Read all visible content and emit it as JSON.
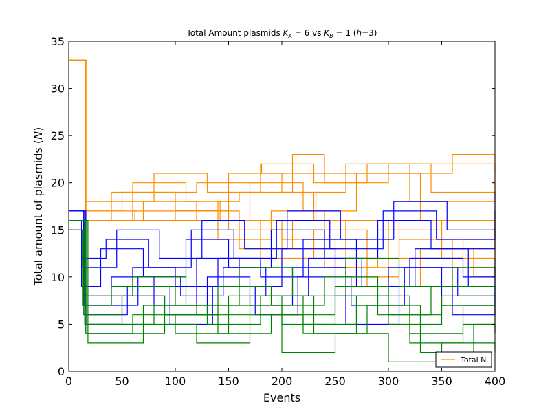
{
  "chart_data": {
    "type": "line",
    "title_text": "Total Amount plasmids",
    "title_ka": "K",
    "title_ka_sub": "A",
    "title_eq1": " = 6 vs ",
    "title_kb": "K",
    "title_kb_sub": "B",
    "title_eq2": " = 1 (",
    "title_h": "h",
    "title_end": "=3)",
    "xlabel": "Events",
    "ylabel_text": "Total amount of plasmids (",
    "ylabel_var": "N",
    "ylabel_end": ")",
    "xlim": [
      0,
      400
    ],
    "ylim": [
      0,
      35
    ],
    "xticks": [
      "0",
      "50",
      "100",
      "150",
      "200",
      "250",
      "300",
      "350",
      "400"
    ],
    "yticks": [
      "0",
      "5",
      "10",
      "15",
      "20",
      "25",
      "30",
      "35"
    ],
    "legend_placement": "lower-right",
    "legend": [
      {
        "label": "Total N",
        "color": "#ff8c00"
      }
    ],
    "colors": {
      "orange": "#ff8c00",
      "blue": "#0000ff",
      "green": "#008000"
    },
    "series": [
      {
        "group": "orange",
        "points": [
          [
            0,
            33
          ],
          [
            16,
            16
          ],
          [
            60,
            17
          ],
          [
            62,
            16
          ],
          [
            140,
            18
          ],
          [
            142,
            16
          ],
          [
            230,
            19
          ],
          [
            232,
            16
          ],
          [
            400,
            16
          ]
        ]
      },
      {
        "group": "orange",
        "points": [
          [
            0,
            33
          ],
          [
            16,
            16
          ],
          [
            40,
            19
          ],
          [
            60,
            19
          ],
          [
            120,
            20
          ],
          [
            180,
            22
          ],
          [
            181,
            21
          ],
          [
            300,
            22
          ],
          [
            400,
            22
          ]
        ]
      },
      {
        "group": "orange",
        "points": [
          [
            0,
            33
          ],
          [
            16,
            17
          ],
          [
            50,
            19
          ],
          [
            100,
            17
          ],
          [
            150,
            21
          ],
          [
            200,
            19
          ],
          [
            260,
            22
          ],
          [
            320,
            18
          ],
          [
            400,
            20
          ]
        ]
      },
      {
        "group": "orange",
        "points": [
          [
            0,
            33
          ],
          [
            16,
            16
          ],
          [
            70,
            18
          ],
          [
            120,
            16
          ],
          [
            170,
            20
          ],
          [
            220,
            17
          ],
          [
            270,
            21
          ],
          [
            330,
            16
          ],
          [
            400,
            19
          ]
        ]
      },
      {
        "group": "orange",
        "points": [
          [
            0,
            33
          ],
          [
            17,
            16
          ],
          [
            60,
            20
          ],
          [
            110,
            18
          ],
          [
            160,
            19
          ],
          [
            210,
            23
          ],
          [
            240,
            20
          ],
          [
            300,
            21
          ],
          [
            360,
            23
          ],
          [
            400,
            21
          ]
        ]
      },
      {
        "group": "orange",
        "points": [
          [
            0,
            33
          ],
          [
            16,
            18
          ],
          [
            80,
            21
          ],
          [
            130,
            19
          ],
          [
            180,
            22
          ],
          [
            230,
            20
          ],
          [
            280,
            22
          ],
          [
            340,
            19
          ],
          [
            400,
            22
          ]
        ]
      },
      {
        "group": "orange",
        "points": [
          [
            0,
            33
          ],
          [
            16,
            16
          ],
          [
            100,
            17
          ],
          [
            150,
            15
          ],
          [
            200,
            13
          ],
          [
            260,
            16
          ],
          [
            310,
            12
          ],
          [
            370,
            14
          ],
          [
            400,
            16
          ]
        ]
      },
      {
        "group": "orange",
        "points": [
          [
            0,
            33
          ],
          [
            16,
            16
          ],
          [
            90,
            16
          ],
          [
            140,
            14
          ],
          [
            190,
            17
          ],
          [
            240,
            11
          ],
          [
            290,
            15
          ],
          [
            350,
            12
          ],
          [
            400,
            13
          ]
        ]
      },
      {
        "group": "orange",
        "points": [
          [
            0,
            33
          ],
          [
            16,
            17
          ],
          [
            110,
            17
          ],
          [
            160,
            13
          ],
          [
            210,
            16
          ],
          [
            260,
            10
          ],
          [
            310,
            14
          ],
          [
            360,
            11
          ],
          [
            400,
            15
          ]
        ]
      },
      {
        "group": "orange",
        "points": [
          [
            0,
            33
          ],
          [
            16,
            16
          ],
          [
            130,
            16
          ],
          [
            180,
            12
          ],
          [
            230,
            15
          ],
          [
            280,
            9
          ],
          [
            330,
            13
          ],
          [
            380,
            10
          ],
          [
            400,
            12
          ]
        ]
      },
      {
        "group": "orange",
        "points": [
          [
            0,
            33
          ],
          [
            16,
            16
          ],
          [
            150,
            16
          ],
          [
            200,
            14
          ],
          [
            250,
            11
          ],
          [
            300,
            16
          ],
          [
            350,
            13
          ],
          [
            400,
            17
          ]
        ]
      },
      {
        "group": "blue",
        "points": [
          [
            0,
            17
          ],
          [
            14,
            7
          ],
          [
            40,
            10
          ],
          [
            80,
            7
          ],
          [
            120,
            12
          ],
          [
            160,
            9
          ],
          [
            200,
            13
          ],
          [
            250,
            8
          ],
          [
            300,
            11
          ],
          [
            350,
            7
          ],
          [
            400,
            9
          ]
        ]
      },
      {
        "group": "blue",
        "points": [
          [
            0,
            16
          ],
          [
            12,
            9
          ],
          [
            30,
            13
          ],
          [
            70,
            10
          ],
          [
            110,
            14
          ],
          [
            150,
            11
          ],
          [
            190,
            15
          ],
          [
            240,
            12
          ],
          [
            290,
            16
          ],
          [
            340,
            13
          ],
          [
            400,
            15
          ]
        ]
      },
      {
        "group": "blue",
        "points": [
          [
            0,
            17
          ],
          [
            15,
            5
          ],
          [
            50,
            8
          ],
          [
            90,
            6
          ],
          [
            130,
            10
          ],
          [
            170,
            7
          ],
          [
            210,
            11
          ],
          [
            260,
            5
          ],
          [
            310,
            9
          ],
          [
            360,
            6
          ],
          [
            400,
            8
          ]
        ]
      },
      {
        "group": "blue",
        "points": [
          [
            0,
            15
          ],
          [
            13,
            11
          ],
          [
            45,
            15
          ],
          [
            85,
            12
          ],
          [
            125,
            16
          ],
          [
            165,
            13
          ],
          [
            205,
            17
          ],
          [
            255,
            14
          ],
          [
            305,
            18
          ],
          [
            355,
            15
          ],
          [
            400,
            19
          ]
        ]
      },
      {
        "group": "blue",
        "points": [
          [
            0,
            16
          ],
          [
            14,
            8
          ],
          [
            60,
            11
          ],
          [
            100,
            9
          ],
          [
            140,
            12
          ],
          [
            180,
            10
          ],
          [
            220,
            14
          ],
          [
            270,
            9
          ],
          [
            320,
            12
          ],
          [
            370,
            10
          ],
          [
            400,
            11
          ]
        ]
      },
      {
        "group": "blue",
        "points": [
          [
            0,
            17
          ],
          [
            16,
            6
          ],
          [
            55,
            9
          ],
          [
            95,
            5
          ],
          [
            135,
            9
          ],
          [
            175,
            6
          ],
          [
            215,
            10
          ],
          [
            265,
            7
          ],
          [
            315,
            11
          ],
          [
            365,
            8
          ],
          [
            400,
            10
          ]
        ]
      },
      {
        "group": "blue",
        "points": [
          [
            0,
            16
          ],
          [
            12,
            12
          ],
          [
            35,
            14
          ],
          [
            75,
            11
          ],
          [
            115,
            15
          ],
          [
            155,
            12
          ],
          [
            195,
            16
          ],
          [
            245,
            13
          ],
          [
            295,
            17
          ],
          [
            345,
            14
          ],
          [
            400,
            17
          ]
        ]
      },
      {
        "group": "blue",
        "points": [
          [
            0,
            17
          ],
          [
            15,
            7
          ],
          [
            65,
            10
          ],
          [
            105,
            8
          ],
          [
            145,
            11
          ],
          [
            185,
            8
          ],
          [
            225,
            12
          ],
          [
            275,
            9
          ],
          [
            325,
            13
          ],
          [
            375,
            9
          ],
          [
            400,
            12
          ]
        ]
      },
      {
        "group": "green",
        "points": [
          [
            0,
            16
          ],
          [
            16,
            4
          ],
          [
            60,
            6
          ],
          [
            100,
            4
          ],
          [
            150,
            7
          ],
          [
            200,
            5
          ],
          [
            250,
            8
          ],
          [
            300,
            5
          ],
          [
            350,
            7
          ],
          [
            400,
            6
          ]
        ]
      },
      {
        "group": "green",
        "points": [
          [
            0,
            16
          ],
          [
            18,
            3
          ],
          [
            70,
            5
          ],
          [
            120,
            3
          ],
          [
            170,
            6
          ],
          [
            220,
            4
          ],
          [
            270,
            7
          ],
          [
            320,
            3
          ],
          [
            370,
            5
          ],
          [
            400,
            4
          ]
        ]
      },
      {
        "group": "green",
        "points": [
          [
            0,
            15
          ],
          [
            14,
            6
          ],
          [
            50,
            8
          ],
          [
            90,
            6
          ],
          [
            140,
            9
          ],
          [
            190,
            7
          ],
          [
            240,
            10
          ],
          [
            290,
            6
          ],
          [
            340,
            9
          ],
          [
            400,
            8
          ]
        ]
      },
      {
        "group": "green",
        "points": [
          [
            0,
            16
          ],
          [
            17,
            5
          ],
          [
            80,
            7
          ],
          [
            130,
            5
          ],
          [
            180,
            8
          ],
          [
            230,
            4
          ],
          [
            280,
            7
          ],
          [
            330,
            2
          ],
          [
            380,
            5
          ],
          [
            400,
            4
          ]
        ]
      },
      {
        "group": "green",
        "points": [
          [
            0,
            16
          ],
          [
            15,
            8
          ],
          [
            60,
            10
          ],
          [
            110,
            7
          ],
          [
            160,
            11
          ],
          [
            210,
            8
          ],
          [
            260,
            12
          ],
          [
            310,
            9
          ],
          [
            360,
            11
          ],
          [
            400,
            10
          ]
        ]
      },
      {
        "group": "green",
        "points": [
          [
            0,
            16
          ],
          [
            16,
            4
          ],
          [
            90,
            6
          ],
          [
            140,
            4
          ],
          [
            190,
            6
          ],
          [
            200,
            2
          ],
          [
            250,
            4
          ],
          [
            300,
            1
          ],
          [
            350,
            3
          ],
          [
            400,
            2
          ]
        ]
      },
      {
        "group": "green",
        "points": [
          [
            0,
            15
          ],
          [
            13,
            7
          ],
          [
            40,
            9
          ],
          [
            100,
            7
          ],
          [
            150,
            8
          ],
          [
            200,
            6
          ],
          [
            250,
            9
          ],
          [
            300,
            6
          ],
          [
            350,
            8
          ],
          [
            400,
            7
          ]
        ]
      },
      {
        "group": "green",
        "points": [
          [
            0,
            16
          ],
          [
            16,
            5
          ],
          [
            70,
            7
          ],
          [
            120,
            6
          ],
          [
            170,
            8
          ],
          [
            220,
            5
          ],
          [
            270,
            8
          ],
          [
            320,
            4
          ],
          [
            370,
            7
          ],
          [
            400,
            5
          ]
        ]
      }
    ]
  }
}
